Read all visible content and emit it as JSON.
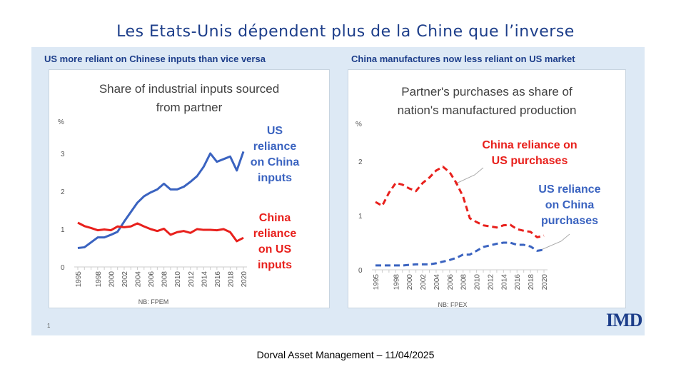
{
  "title": "Les Etats-Unis dépendent plus de la Chine que l’inverse",
  "footer": "Dorval Asset Management – 11/04/2025",
  "page_number": "1",
  "logo": "IMD",
  "chart_data": [
    {
      "type": "line",
      "subtitle": "US more reliant on Chinese inputs than vice versa",
      "title": "Share of industrial inputs sourced from partner",
      "title_lines": [
        "Share of industrial inputs sourced",
        "from partner"
      ],
      "ylabel": "%",
      "note": "NB: FPEM",
      "ylim": [
        0,
        3.5
      ],
      "yticks": [
        "0",
        "1",
        "2",
        "3"
      ],
      "xticks": [
        "1995",
        "1998",
        "2000",
        "2002",
        "2004",
        "2006",
        "2008",
        "2010",
        "2012",
        "2014",
        "2016",
        "2018",
        "2020"
      ],
      "x": [
        1995,
        1996,
        1997,
        1998,
        1999,
        2000,
        2001,
        2002,
        2003,
        2004,
        2005,
        2006,
        2007,
        2008,
        2009,
        2010,
        2011,
        2012,
        2013,
        2014,
        2015,
        2016,
        2017,
        2018,
        2019,
        2020
      ],
      "series": [
        {
          "name": "US reliance on China inputs",
          "label_lines": [
            "US",
            "reliance",
            "on China",
            "inputs"
          ],
          "color": "#3a63c0",
          "dashed": false,
          "values": [
            0.5,
            0.52,
            0.65,
            0.78,
            0.78,
            0.85,
            0.93,
            1.2,
            1.45,
            1.7,
            1.87,
            1.97,
            2.05,
            2.2,
            2.05,
            2.05,
            2.12,
            2.25,
            2.4,
            2.65,
            3.0,
            2.78,
            2.85,
            2.92,
            2.55,
            3.05
          ]
        },
        {
          "name": "China reliance on US inputs",
          "label_lines": [
            "China",
            "reliance",
            "on US",
            "inputs"
          ],
          "color": "#e8201c",
          "dashed": false,
          "values": [
            1.17,
            1.08,
            1.03,
            0.97,
            0.99,
            0.97,
            1.07,
            1.05,
            1.07,
            1.15,
            1.07,
            1.0,
            0.95,
            1.01,
            0.85,
            0.92,
            0.95,
            0.9,
            1.0,
            0.98,
            0.98,
            0.97,
            1.0,
            0.92,
            0.68,
            0.77
          ]
        }
      ]
    },
    {
      "type": "line",
      "subtitle": "China manufactures now less reliant on US market",
      "title": "Partner's purchases as share of nation's manufactured production",
      "title_lines": [
        "Partner's purchases as share of",
        "nation's manufactured production"
      ],
      "ylabel": "%",
      "note": "NB: FPEX",
      "ylim": [
        0,
        2.6
      ],
      "yticks": [
        "0",
        "1",
        "2"
      ],
      "xticks": [
        "1995",
        "1998",
        "2000",
        "2002",
        "2004",
        "2006",
        "2008",
        "2010",
        "2012",
        "2014",
        "2016",
        "2018",
        "2020"
      ],
      "x": [
        1995,
        1996,
        1997,
        1998,
        1999,
        2000,
        2001,
        2002,
        2003,
        2004,
        2005,
        2006,
        2007,
        2008,
        2009,
        2010,
        2011,
        2012,
        2013,
        2014,
        2015,
        2016,
        2017,
        2018,
        2019,
        2020
      ],
      "series": [
        {
          "name": "China reliance on US purchases",
          "label_lines": [
            "China reliance on",
            "US purchases"
          ],
          "color": "#e8201c",
          "dashed": true,
          "values": [
            1.25,
            1.18,
            1.42,
            1.6,
            1.57,
            1.5,
            1.45,
            1.6,
            1.7,
            1.83,
            1.9,
            1.8,
            1.6,
            1.35,
            0.95,
            0.88,
            0.82,
            0.8,
            0.78,
            0.82,
            0.83,
            0.75,
            0.72,
            0.7,
            0.6,
            0.63
          ]
        },
        {
          "name": "US reliance on China purchases",
          "label_lines": [
            "US reliance",
            "on China",
            "purchases"
          ],
          "color": "#3a63c0",
          "dashed": true,
          "values": [
            0.08,
            0.08,
            0.08,
            0.08,
            0.08,
            0.09,
            0.1,
            0.1,
            0.1,
            0.12,
            0.15,
            0.18,
            0.22,
            0.28,
            0.28,
            0.35,
            0.42,
            0.45,
            0.48,
            0.5,
            0.5,
            0.46,
            0.46,
            0.43,
            0.35,
            0.37
          ]
        }
      ]
    }
  ]
}
